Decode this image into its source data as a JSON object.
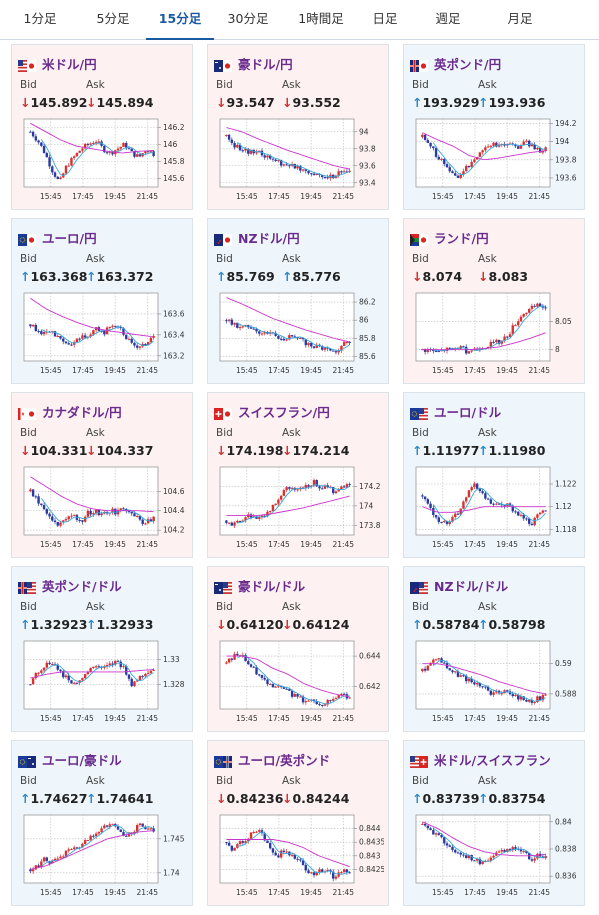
{
  "tabs": [
    {
      "label": "1分足",
      "active": false
    },
    {
      "label": "5分足",
      "active": false
    },
    {
      "label": "15分足",
      "active": true
    },
    {
      "label": "30分足",
      "active": false
    },
    {
      "label": "1時間足",
      "active": false
    },
    {
      "label": "日足",
      "active": false
    },
    {
      "label": "週足",
      "active": false
    },
    {
      "label": "月足",
      "active": false
    }
  ],
  "labels": {
    "bid": "Bid",
    "ask": "Ask"
  },
  "x_tick_labels": [
    "15:45",
    "17:45",
    "19:45",
    "21:45"
  ],
  "colors": {
    "up_candle": "#d93030",
    "down_candle": "#2a3aa0",
    "ma_short": "#38a8d8",
    "ma_long": "#cc33cc",
    "up_bg": "#eef6fc",
    "down_bg": "#fdf1f1",
    "pair_text": "#6b2a8e",
    "up_arrow": "#2a8acb",
    "down_arrow": "#d23030"
  },
  "cards": [
    {
      "pair": "米ドル/円",
      "flag": "us-jp",
      "direction": "down",
      "bid": "145.892",
      "ask": "145.894"
    },
    {
      "pair": "豪ドル/円",
      "flag": "au-jp",
      "direction": "down",
      "bid": "93.547",
      "ask": "93.552"
    },
    {
      "pair": "英ポンド/円",
      "flag": "gb-jp",
      "direction": "up",
      "bid": "193.929",
      "ask": "193.936"
    },
    {
      "pair": "ユーロ/円",
      "flag": "eu-jp",
      "direction": "up",
      "bid": "163.368",
      "ask": "163.372"
    },
    {
      "pair": "NZドル/円",
      "flag": "nz-jp",
      "direction": "up",
      "bid": "85.769",
      "ask": "85.776"
    },
    {
      "pair": "ランド/円",
      "flag": "za-jp",
      "direction": "down",
      "bid": "8.074",
      "ask": "8.083"
    },
    {
      "pair": "カナダドル/円",
      "flag": "ca-jp",
      "direction": "down",
      "bid": "104.331",
      "ask": "104.337"
    },
    {
      "pair": "スイスフラン/円",
      "flag": "ch-jp",
      "direction": "down",
      "bid": "174.198",
      "ask": "174.214"
    },
    {
      "pair": "ユーロ/ドル",
      "flag": "eu-us",
      "direction": "up",
      "bid": "1.11977",
      "ask": "1.11980"
    },
    {
      "pair": "英ポンド/ドル",
      "flag": "gb-us",
      "direction": "up",
      "bid": "1.32923",
      "ask": "1.32933"
    },
    {
      "pair": "豪ドル/ドル",
      "flag": "au-us",
      "direction": "down",
      "bid": "0.64120",
      "ask": "0.64124"
    },
    {
      "pair": "NZドル/ドル",
      "flag": "nz-us",
      "direction": "up",
      "bid": "0.58784",
      "ask": "0.58798"
    },
    {
      "pair": "ユーロ/豪ドル",
      "flag": "eu-au",
      "direction": "up",
      "bid": "1.74627",
      "ask": "1.74641"
    },
    {
      "pair": "ユーロ/英ポンド",
      "flag": "eu-gb",
      "direction": "down",
      "bid": "0.84236",
      "ask": "0.84244"
    },
    {
      "pair": "米ドル/スイスフラン",
      "flag": "us-ch",
      "direction": "up",
      "bid": "0.83739",
      "ask": "0.83754"
    }
  ],
  "chart_data": [
    {
      "type": "candlestick",
      "pair": "米ドル/円",
      "yticks": [
        "146.2",
        "146",
        "145.8",
        "145.6"
      ],
      "ylim": [
        145.5,
        146.3
      ],
      "close_path": [
        146.15,
        146.05,
        145.9,
        145.7,
        145.55,
        145.75,
        145.85,
        145.95,
        146.0,
        146.05,
        145.95,
        145.9,
        145.95,
        146.0,
        145.9,
        145.85,
        145.95,
        145.89
      ],
      "ma_long": [
        146.25,
        146.15,
        146.05,
        145.98,
        145.95,
        145.92,
        145.9,
        145.92,
        145.93
      ]
    },
    {
      "type": "candlestick",
      "pair": "豪ドル/円",
      "yticks": [
        "94",
        "93.8",
        "93.6",
        "93.4"
      ],
      "ylim": [
        93.35,
        94.15
      ],
      "close_path": [
        93.95,
        93.85,
        93.8,
        93.75,
        93.78,
        93.72,
        93.7,
        93.65,
        93.62,
        93.6,
        93.58,
        93.55,
        93.5,
        93.5,
        93.45,
        93.5,
        93.52,
        93.55
      ],
      "ma_long": [
        94.05,
        94.0,
        93.92,
        93.85,
        93.78,
        93.72,
        93.66,
        93.6,
        93.56
      ]
    },
    {
      "type": "candlestick",
      "pair": "英ポンド/円",
      "yticks": [
        "194.2",
        "194",
        "193.8",
        "193.6"
      ],
      "ylim": [
        193.5,
        194.25
      ],
      "close_path": [
        194.05,
        193.95,
        193.85,
        193.75,
        193.65,
        193.62,
        193.7,
        193.8,
        193.9,
        193.95,
        193.98,
        193.95,
        194.0,
        193.92,
        194.02,
        193.95,
        193.9,
        193.93
      ],
      "ma_long": [
        194.1,
        194.02,
        193.95,
        193.85,
        193.8,
        193.82,
        193.85,
        193.88,
        193.9
      ]
    },
    {
      "type": "candlestick",
      "pair": "ユーロ/円",
      "yticks": [
        "163.6",
        "163.4",
        "163.2"
      ],
      "ylim": [
        163.15,
        163.8
      ],
      "close_path": [
        163.5,
        163.45,
        163.4,
        163.42,
        163.35,
        163.3,
        163.32,
        163.38,
        163.4,
        163.45,
        163.42,
        163.48,
        163.5,
        163.4,
        163.3,
        163.28,
        163.32,
        163.37
      ],
      "ma_long": [
        163.75,
        163.65,
        163.58,
        163.52,
        163.47,
        163.44,
        163.42,
        163.4,
        163.38
      ]
    },
    {
      "type": "candlestick",
      "pair": "NZドル/円",
      "yticks": [
        "86.2",
        "86",
        "85.8",
        "85.6"
      ],
      "ylim": [
        85.55,
        86.3
      ],
      "close_path": [
        86.0,
        85.95,
        85.9,
        85.95,
        85.9,
        85.85,
        85.88,
        85.82,
        85.8,
        85.82,
        85.78,
        85.75,
        85.72,
        85.7,
        85.68,
        85.65,
        85.72,
        85.77
      ],
      "ma_long": [
        86.25,
        86.18,
        86.1,
        86.02,
        85.96,
        85.9,
        85.85,
        85.8,
        85.76
      ]
    },
    {
      "type": "candlestick",
      "pair": "ランド/円",
      "yticks": [
        "8.05",
        "8"
      ],
      "ylim": [
        7.98,
        8.1
      ],
      "close_path": [
        8.0,
        8.0,
        7.995,
        8.0,
        8.0,
        8.005,
        7.998,
        8.0,
        8.005,
        8.008,
        8.012,
        8.015,
        8.03,
        8.05,
        8.065,
        8.072,
        8.078,
        8.074
      ],
      "ma_long": [
        8.0,
        8.0,
        8.0,
        8.0,
        8.002,
        8.005,
        8.012,
        8.02,
        8.03
      ]
    },
    {
      "type": "candlestick",
      "pair": "カナダドル/円",
      "yticks": [
        "104.6",
        "104.4",
        "104.2"
      ],
      "ylim": [
        104.15,
        104.85
      ],
      "close_path": [
        104.6,
        104.5,
        104.4,
        104.3,
        104.25,
        104.3,
        104.35,
        104.3,
        104.38,
        104.4,
        104.35,
        104.4,
        104.38,
        104.42,
        104.4,
        104.3,
        104.28,
        104.33
      ],
      "ma_long": [
        104.75,
        104.65,
        104.55,
        104.47,
        104.42,
        104.4,
        104.4,
        104.4,
        104.39
      ]
    },
    {
      "type": "candlestick",
      "pair": "スイスフラン/円",
      "yticks": [
        "174.2",
        "174",
        "173.8"
      ],
      "ylim": [
        173.7,
        174.4
      ],
      "close_path": [
        173.85,
        173.8,
        173.85,
        173.9,
        173.88,
        173.9,
        173.95,
        174.05,
        174.15,
        174.2,
        174.15,
        174.2,
        174.25,
        174.2,
        174.18,
        174.15,
        174.2,
        174.2
      ],
      "ma_long": [
        173.9,
        173.9,
        173.9,
        173.92,
        173.95,
        173.98,
        174.02,
        174.06,
        174.1
      ]
    },
    {
      "type": "candlestick",
      "pair": "ユーロ/ドル",
      "yticks": [
        "1.122",
        "1.12",
        "1.118"
      ],
      "ylim": [
        1.1175,
        1.1235
      ],
      "close_path": [
        1.121,
        1.12,
        1.119,
        1.1185,
        1.119,
        1.1195,
        1.121,
        1.122,
        1.1212,
        1.1205,
        1.12,
        1.1202,
        1.12,
        1.1195,
        1.119,
        1.1185,
        1.1192,
        1.1198
      ],
      "ma_long": [
        1.12,
        1.1195,
        1.1195,
        1.1197,
        1.12,
        1.12,
        1.12,
        1.12,
        1.12
      ]
    },
    {
      "type": "candlestick",
      "pair": "英ポンド/ドル",
      "yticks": [
        "1.33",
        "1.328"
      ],
      "ylim": [
        1.326,
        1.3315
      ],
      "close_path": [
        1.328,
        1.329,
        1.3295,
        1.3298,
        1.329,
        1.3285,
        1.328,
        1.3285,
        1.329,
        1.3295,
        1.3292,
        1.3295,
        1.3298,
        1.3292,
        1.328,
        1.3285,
        1.329,
        1.3292
      ],
      "ma_long": [
        1.3285,
        1.3288,
        1.329,
        1.329,
        1.329,
        1.329,
        1.329,
        1.3291,
        1.3292
      ]
    },
    {
      "type": "candlestick",
      "pair": "豪ドル/ドル",
      "yticks": [
        "0.644",
        "0.642"
      ],
      "ylim": [
        0.6405,
        0.645
      ],
      "close_path": [
        0.6435,
        0.644,
        0.6442,
        0.6435,
        0.643,
        0.6425,
        0.6422,
        0.642,
        0.6418,
        0.6415,
        0.6412,
        0.641,
        0.641,
        0.6408,
        0.641,
        0.6412,
        0.6415,
        0.6412
      ],
      "ma_long": [
        0.644,
        0.644,
        0.6438,
        0.6432,
        0.6428,
        0.6422,
        0.6418,
        0.6415,
        0.6413
      ]
    },
    {
      "type": "candlestick",
      "pair": "NZドル/ドル",
      "yticks": [
        "0.59",
        "0.588"
      ],
      "ylim": [
        0.587,
        0.5915
      ],
      "close_path": [
        0.5895,
        0.59,
        0.5905,
        0.59,
        0.5895,
        0.5892,
        0.589,
        0.5888,
        0.5885,
        0.5882,
        0.588,
        0.5882,
        0.588,
        0.5878,
        0.5876,
        0.5875,
        0.5877,
        0.5878
      ],
      "ma_long": [
        0.59,
        0.59,
        0.5898,
        0.5895,
        0.5892,
        0.5888,
        0.5885,
        0.5882,
        0.588
      ]
    },
    {
      "type": "candlestick",
      "pair": "ユーロ/豪ドル",
      "yticks": [
        "1.745",
        "1.74"
      ],
      "ylim": [
        1.7385,
        1.7485
      ],
      "close_path": [
        1.7405,
        1.741,
        1.742,
        1.7415,
        1.742,
        1.743,
        1.7435,
        1.744,
        1.745,
        1.746,
        1.7465,
        1.747,
        1.7465,
        1.7455,
        1.746,
        1.747,
        1.7465,
        1.7463
      ],
      "ma_long": [
        1.7405,
        1.741,
        1.742,
        1.743,
        1.744,
        1.745,
        1.7455,
        1.746,
        1.7462
      ]
    },
    {
      "type": "candlestick",
      "pair": "ユーロ/英ポンド",
      "yticks": [
        "0.844",
        "0.8435",
        "0.843",
        "0.8425"
      ],
      "ylim": [
        0.842,
        0.8445
      ],
      "close_path": [
        0.8435,
        0.8432,
        0.8435,
        0.8437,
        0.844,
        0.8438,
        0.8433,
        0.843,
        0.8432,
        0.843,
        0.8428,
        0.8425,
        0.8423,
        0.8425,
        0.8424,
        0.8422,
        0.8424,
        0.8424
      ],
      "ma_long": [
        0.8436,
        0.8436,
        0.8436,
        0.8436,
        0.8435,
        0.8433,
        0.843,
        0.8428,
        0.8426
      ]
    },
    {
      "type": "candlestick",
      "pair": "米ドル/スイスフラン",
      "yticks": [
        "0.84",
        "0.838",
        "0.836"
      ],
      "ylim": [
        0.8355,
        0.8405
      ],
      "close_path": [
        0.8398,
        0.8395,
        0.839,
        0.8385,
        0.838,
        0.8378,
        0.8375,
        0.8372,
        0.837,
        0.8372,
        0.8375,
        0.8378,
        0.838,
        0.8382,
        0.8378,
        0.8372,
        0.8375,
        0.8374
      ],
      "ma_long": [
        0.84,
        0.8395,
        0.8388,
        0.8382,
        0.8378,
        0.8376,
        0.8375,
        0.8375,
        0.8376
      ]
    }
  ]
}
